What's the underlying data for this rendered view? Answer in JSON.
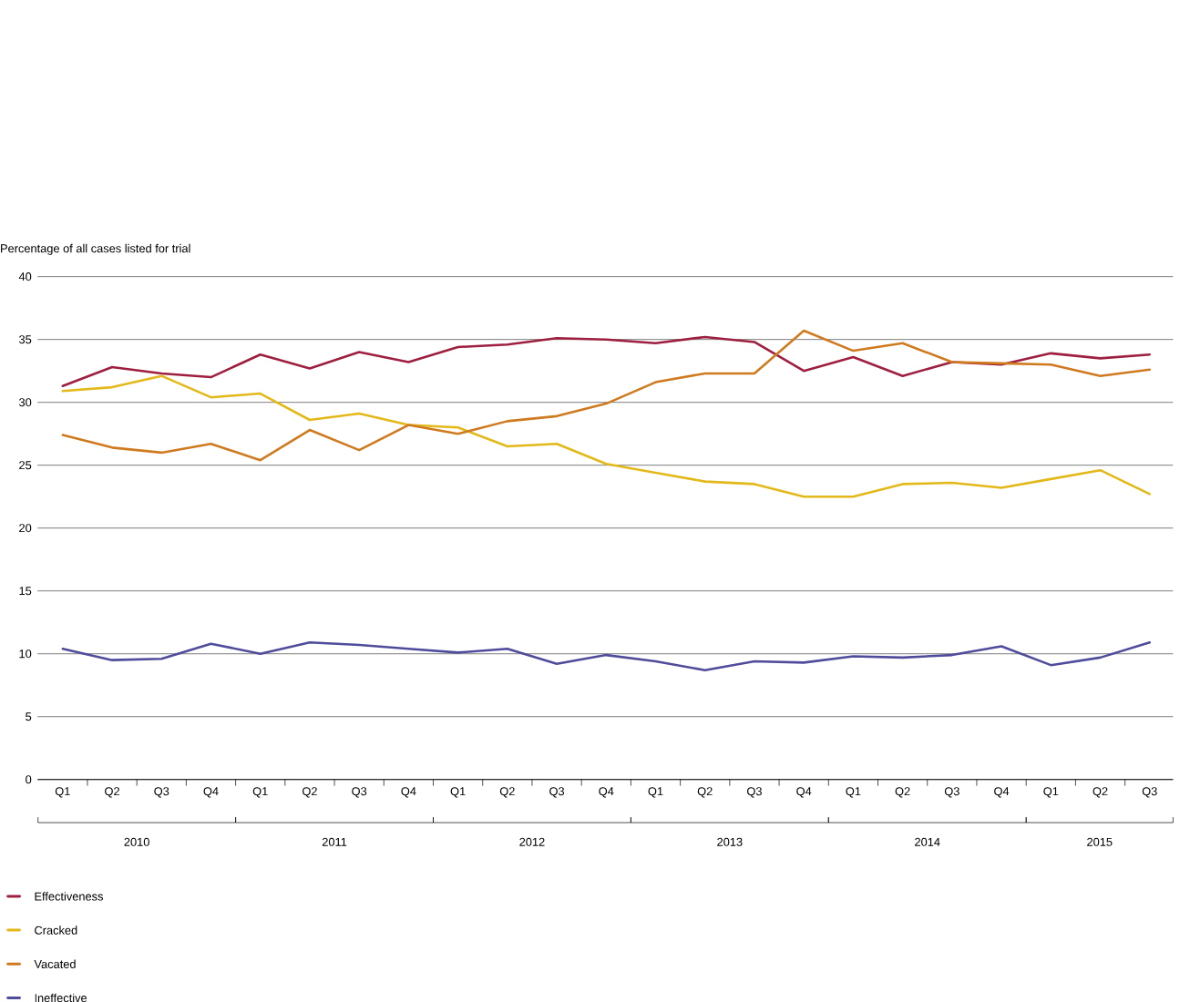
{
  "chart_data": {
    "type": "line",
    "ylabel": "Percentage of all cases listed for trial",
    "categories": [
      "Q1",
      "Q2",
      "Q3",
      "Q4",
      "Q1",
      "Q2",
      "Q3",
      "Q4",
      "Q1",
      "Q2",
      "Q3",
      "Q4",
      "Q1",
      "Q2",
      "Q3",
      "Q4",
      "Q1",
      "Q2",
      "Q3",
      "Q4",
      "Q1",
      "Q2",
      "Q3"
    ],
    "annotations": [
      "2010",
      "2011",
      "2012",
      "2013",
      "2014",
      "2015"
    ],
    "ylim": [
      0,
      40
    ],
    "yticks": [
      0,
      5,
      10,
      15,
      20,
      25,
      30,
      35,
      40
    ],
    "grid": "y",
    "legend": "bottom",
    "marker": "none",
    "line_style": "solid",
    "series": [
      {
        "name": "Effectiveness",
        "color": "#9e1f3f",
        "values": [
          31.3,
          32.8,
          32.3,
          32.0,
          33.8,
          32.7,
          34.0,
          33.2,
          34.4,
          34.6,
          35.1,
          35.0,
          34.7,
          35.2,
          34.8,
          32.5,
          33.6,
          32.1,
          33.2,
          33.0,
          33.9,
          33.5,
          33.8
        ]
      },
      {
        "name": "Cracked",
        "color": "#e3b919",
        "values": [
          30.9,
          31.2,
          32.1,
          30.4,
          30.7,
          28.6,
          29.1,
          28.2,
          28.0,
          26.5,
          26.7,
          25.1,
          24.4,
          23.7,
          23.5,
          22.5,
          22.5,
          23.5,
          23.6,
          23.2,
          23.9,
          24.6,
          22.7
        ]
      },
      {
        "name": "Vacated",
        "color": "#d07a20",
        "values": [
          27.4,
          26.4,
          26.0,
          26.7,
          25.4,
          27.8,
          26.2,
          28.2,
          27.5,
          28.5,
          28.9,
          29.9,
          31.6,
          32.3,
          32.3,
          35.7,
          34.1,
          34.7,
          33.2,
          33.1,
          33.0,
          32.1,
          32.6
        ]
      },
      {
        "name": "Ineffective",
        "color": "#4f4c9c",
        "values": [
          10.4,
          9.5,
          9.6,
          10.8,
          10.0,
          10.9,
          10.7,
          10.4,
          10.1,
          10.4,
          9.2,
          9.9,
          9.4,
          8.7,
          9.4,
          9.3,
          9.8,
          9.7,
          9.9,
          10.6,
          9.1,
          9.7,
          10.9
        ]
      }
    ]
  }
}
